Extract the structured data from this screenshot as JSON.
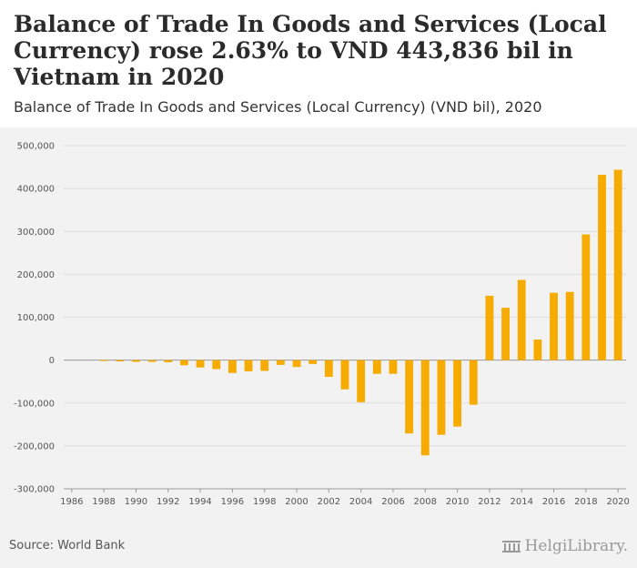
{
  "header": {
    "title": "Balance of Trade In Goods and Services (Local Currency) rose 2.63% to VND 443,836 bil in Vietnam in 2020",
    "subtitle": "Balance of Trade In Goods and Services (Local Currency) (VND bil), 2020"
  },
  "footer": {
    "source": "Source: World Bank",
    "logo_text": "HelgiLibrary."
  },
  "colors": {
    "bar": "#f5ab00",
    "grid": "#dddddd",
    "axis": "#999999"
  },
  "chart_data": {
    "type": "bar",
    "title": "Balance of Trade In Goods and Services (Local Currency) rose 2.63% to VND 443,836 bil in Vietnam in 2020",
    "subtitle": "Balance of Trade In Goods and Services (Local Currency) (VND bil), 2020",
    "xlabel": "",
    "ylabel": "",
    "categories": [
      "1986",
      "1987",
      "1988",
      "1989",
      "1990",
      "1991",
      "1992",
      "1993",
      "1994",
      "1995",
      "1996",
      "1997",
      "1998",
      "1999",
      "2000",
      "2001",
      "2002",
      "2003",
      "2004",
      "2005",
      "2006",
      "2007",
      "2008",
      "2009",
      "2010",
      "2011",
      "2012",
      "2013",
      "2014",
      "2015",
      "2016",
      "2017",
      "2018",
      "2019",
      "2020"
    ],
    "values": [
      0,
      0,
      -2000,
      -3000,
      -4000,
      -4000,
      -5000,
      -12000,
      -17000,
      -21000,
      -30000,
      -26000,
      -25000,
      -11000,
      -16000,
      -9000,
      -39000,
      -68000,
      -98000,
      -32000,
      -32000,
      -171000,
      -222000,
      -174000,
      -155000,
      -104000,
      150000,
      122000,
      187000,
      48000,
      157000,
      159000,
      293000,
      432000,
      443836
    ],
    "x_tick_labels": [
      "1986",
      "1988",
      "1990",
      "1992",
      "1994",
      "1996",
      "1998",
      "2000",
      "2002",
      "2004",
      "2006",
      "2008",
      "2010",
      "2012",
      "2014",
      "2016",
      "2018",
      "2020"
    ],
    "y_ticks": [
      -300000,
      -200000,
      -100000,
      0,
      100000,
      200000,
      300000,
      400000,
      500000
    ],
    "y_tick_labels": [
      "-300,000",
      "-200,000",
      "-100,000",
      "0",
      "100,000",
      "200,000",
      "300,000",
      "400,000",
      "500,000"
    ],
    "ylim": [
      -300000,
      500000
    ],
    "grid": true,
    "legend": "none"
  }
}
